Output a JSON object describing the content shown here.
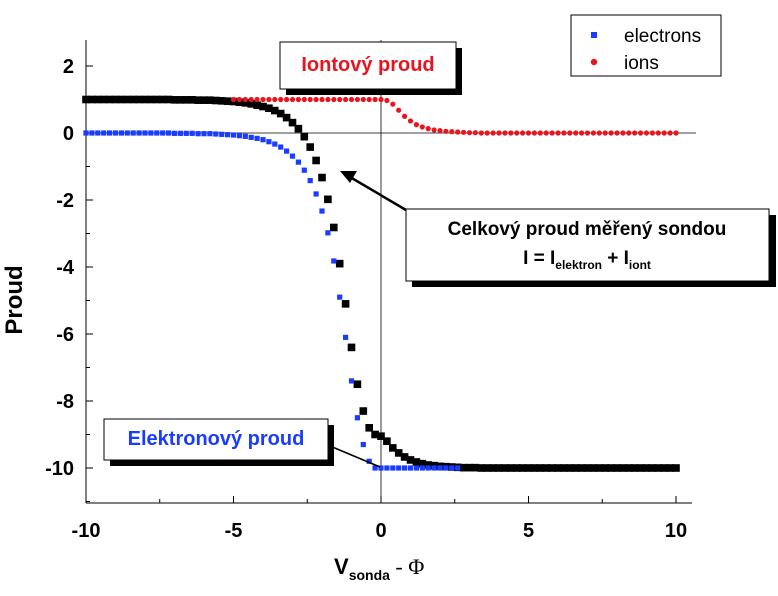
{
  "chart_data": {
    "type": "scatter",
    "xlabel": {
      "main": "V",
      "sub": "sonda",
      "rest": " - Φ"
    },
    "ylabel": "Proud",
    "xlim": [
      -10,
      10
    ],
    "ylim": [
      -11,
      2.5
    ],
    "xticks": [
      "-10",
      "-5",
      "0",
      "5",
      "10"
    ],
    "yticks": [
      "2",
      "0",
      "-2",
      "-4",
      "-6",
      "-8",
      "-10"
    ],
    "legend_position": "top-right",
    "grid": false,
    "zero_lines": true,
    "series": [
      {
        "name": "electrons",
        "color": "#1a3cff",
        "marker": "square",
        "x": [
          -10,
          -9.8,
          -9.6,
          -9.4,
          -9.2,
          -9,
          -8.8,
          -8.6,
          -8.4,
          -8.2,
          -8,
          -7.8,
          -7.6,
          -7.4,
          -7.2,
          -7,
          -6.8,
          -6.6,
          -6.4,
          -6.2,
          -6,
          -5.8,
          -5.6,
          -5.4,
          -5.2,
          -5,
          -4.8,
          -4.6,
          -4.4,
          -4.2,
          -4,
          -3.8,
          -3.6,
          -3.4,
          -3.2,
          -3,
          -2.8,
          -2.6,
          -2.4,
          -2.2,
          -2,
          -1.8,
          -1.6,
          -1.4,
          -1.2,
          -1,
          -0.8,
          -0.6,
          -0.4,
          -0.2,
          0,
          0.2,
          0.4,
          0.6,
          0.8,
          1,
          1.2,
          1.4,
          1.6,
          1.8,
          2,
          2.2,
          2.4,
          2.6
        ],
        "y": [
          0,
          0,
          0,
          0,
          0,
          0,
          0,
          0,
          0,
          0,
          0,
          0,
          0,
          0,
          0,
          -0.01,
          -0.01,
          -0.01,
          -0.01,
          -0.02,
          -0.02,
          -0.02,
          -0.03,
          -0.04,
          -0.05,
          -0.06,
          -0.08,
          -0.1,
          -0.13,
          -0.16,
          -0.2,
          -0.26,
          -0.33,
          -0.42,
          -0.54,
          -0.69,
          -0.87,
          -1.11,
          -1.42,
          -1.82,
          -2.33,
          -2.98,
          -3.82,
          -4.9,
          -6.1,
          -7.4,
          -8.5,
          -9.3,
          -9.8,
          -10,
          -10,
          -10,
          -10,
          -10,
          -10,
          -10,
          -10,
          -10,
          -10,
          -10,
          -10,
          -10,
          -10,
          -10
        ]
      },
      {
        "name": "ions",
        "color": "#e8141e",
        "marker": "circle",
        "x": [
          -5,
          -4.8,
          -4.6,
          -4.4,
          -4.2,
          -4,
          -3.8,
          -3.6,
          -3.4,
          -3.2,
          -3,
          -2.8,
          -2.6,
          -2.4,
          -2.2,
          -2,
          -1.8,
          -1.6,
          -1.4,
          -1.2,
          -1,
          -0.8,
          -0.6,
          -0.4,
          -0.2,
          0,
          0.2,
          0.4,
          0.6,
          0.8,
          1,
          1.2,
          1.4,
          1.6,
          1.8,
          2,
          2.2,
          2.4,
          2.6,
          2.8,
          3,
          3.2,
          3.4,
          3.6,
          3.8,
          4,
          4.2,
          4.4,
          4.6,
          4.8,
          5,
          5.2,
          5.4,
          5.6,
          5.8,
          6,
          6.2,
          6.4,
          6.6,
          6.8,
          7,
          7.2,
          7.4,
          7.6,
          7.8,
          8,
          8.2,
          8.4,
          8.6,
          8.8,
          9,
          9.2,
          9.4,
          9.6,
          9.8,
          10
        ],
        "y": [
          1,
          1,
          1,
          1,
          1,
          1,
          1,
          1,
          1,
          1,
          1,
          1,
          1,
          1,
          1,
          1,
          1,
          1,
          1,
          1,
          1,
          1,
          1,
          1,
          1,
          1,
          0.97,
          0.86,
          0.68,
          0.5,
          0.36,
          0.25,
          0.18,
          0.13,
          0.09,
          0.07,
          0.05,
          0.04,
          0.03,
          0.02,
          0.01,
          0.01,
          0,
          0,
          0,
          0,
          0,
          0,
          0,
          0,
          0,
          0,
          0,
          0,
          0,
          0,
          0,
          0,
          0,
          0,
          0,
          0,
          0,
          0,
          0,
          0,
          0,
          0,
          0,
          0,
          0,
          0,
          0,
          0,
          0,
          0
        ]
      },
      {
        "name": "Celkový proud",
        "color": "#000000",
        "marker": "square-large",
        "x": [
          -10,
          -9.8,
          -9.6,
          -9.4,
          -9.2,
          -9,
          -8.8,
          -8.6,
          -8.4,
          -8.2,
          -8,
          -7.8,
          -7.6,
          -7.4,
          -7.2,
          -7,
          -6.8,
          -6.6,
          -6.4,
          -6.2,
          -6,
          -5.8,
          -5.6,
          -5.4,
          -5.2,
          -5,
          -4.8,
          -4.6,
          -4.4,
          -4.2,
          -4,
          -3.8,
          -3.6,
          -3.4,
          -3.2,
          -3,
          -2.8,
          -2.6,
          -2.4,
          -2.2,
          -2,
          -1.8,
          -1.6,
          -1.4,
          -1.2,
          -1,
          -0.8,
          -0.6,
          -0.4,
          -0.2,
          0,
          0.2,
          0.4,
          0.6,
          0.8,
          1,
          1.2,
          1.4,
          1.6,
          1.8,
          2,
          2.2,
          2.4,
          2.6,
          2.8,
          3,
          3.2,
          3.4,
          3.6,
          3.8,
          4,
          4.2,
          4.4,
          4.6,
          4.8,
          5,
          5.2,
          5.4,
          5.6,
          5.8,
          6,
          6.2,
          6.4,
          6.6,
          6.8,
          7,
          7.2,
          7.4,
          7.6,
          7.8,
          8,
          8.2,
          8.4,
          8.6,
          8.8,
          9,
          9.2,
          9.4,
          9.6,
          9.8,
          10
        ],
        "y": [
          1,
          1,
          1,
          1,
          1,
          1,
          1,
          1,
          1,
          1,
          1,
          1,
          1,
          1,
          1,
          0.99,
          0.99,
          0.99,
          0.99,
          0.98,
          0.98,
          0.98,
          0.97,
          0.96,
          0.95,
          0.94,
          0.92,
          0.9,
          0.87,
          0.83,
          0.79,
          0.74,
          0.67,
          0.58,
          0.46,
          0.31,
          0.13,
          -0.11,
          -0.42,
          -0.82,
          -1.33,
          -1.98,
          -2.82,
          -3.9,
          -5.1,
          -6.4,
          -7.5,
          -8.3,
          -8.8,
          -9,
          -9.05,
          -9.2,
          -9.4,
          -9.55,
          -9.67,
          -9.76,
          -9.82,
          -9.87,
          -9.91,
          -9.93,
          -9.95,
          -9.96,
          -9.97,
          -9.98,
          -9.99,
          -9.99,
          -9.99,
          -10,
          -10,
          -10,
          -10,
          -10,
          -10,
          -10,
          -10,
          -10,
          -10,
          -10,
          -10,
          -10,
          -10,
          -10,
          -10,
          -10,
          -10,
          -10,
          -10,
          -10,
          -10,
          -10,
          -10,
          -10,
          -10,
          -10,
          -10,
          -10,
          -10,
          -10,
          -10,
          -10,
          -10
        ]
      }
    ],
    "annotations": {
      "ion_label": "Iontový proud",
      "ion_color": "#e8141e",
      "electron_label": "Elektronový proud",
      "electron_color": "#1a3cff",
      "total_line1": "Celkový proud měřený sondou",
      "total_line2": {
        "i": "I",
        "eq": " = I",
        "sub1": "elektron",
        "plus": " + I",
        "sub2": "iont"
      }
    }
  }
}
